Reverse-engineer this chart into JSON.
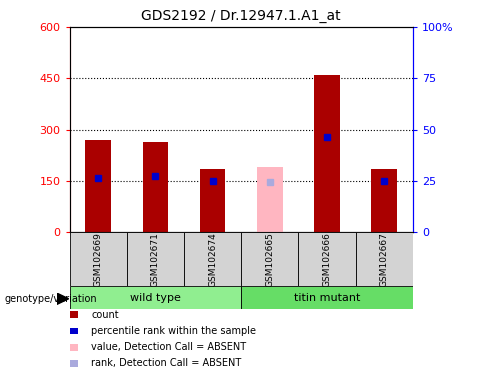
{
  "title": "GDS2192 / Dr.12947.1.A1_at",
  "samples": [
    "GSM102669",
    "GSM102671",
    "GSM102674",
    "GSM102665",
    "GSM102666",
    "GSM102667"
  ],
  "count_values": [
    270,
    265,
    185,
    null,
    460,
    185
  ],
  "rank_values": [
    160,
    165,
    150,
    null,
    278,
    150
  ],
  "absent_value_values": [
    null,
    null,
    null,
    190,
    null,
    null
  ],
  "absent_rank_values": [
    null,
    null,
    null,
    148,
    null,
    null
  ],
  "ylim_left": [
    0,
    600
  ],
  "ylim_right": [
    0,
    100
  ],
  "yticks_left": [
    0,
    150,
    300,
    450,
    600
  ],
  "yticks_right": [
    0,
    25,
    50,
    75,
    100
  ],
  "ytick_labels_right": [
    "0",
    "25",
    "50",
    "75",
    "100%"
  ],
  "bar_color": "#AA0000",
  "rank_color": "#0000CC",
  "absent_value_color": "#FFB6C1",
  "absent_rank_color": "#AAAADD",
  "wt_color": "#90EE90",
  "titin_color": "#66DD66",
  "gray_color": "#D3D3D3",
  "legend_items": [
    {
      "label": "count",
      "color": "#AA0000"
    },
    {
      "label": "percentile rank within the sample",
      "color": "#0000CC"
    },
    {
      "label": "value, Detection Call = ABSENT",
      "color": "#FFB6C1"
    },
    {
      "label": "rank, Detection Call = ABSENT",
      "color": "#AAAADD"
    }
  ]
}
